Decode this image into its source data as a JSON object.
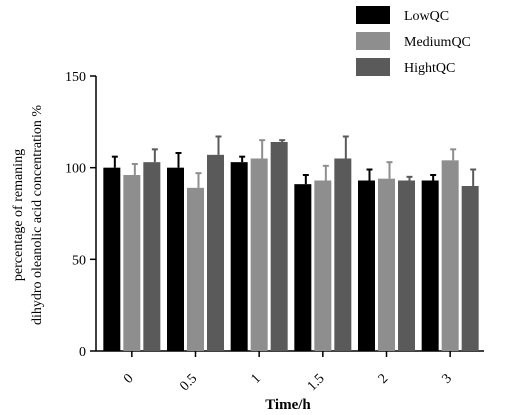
{
  "chart_data": {
    "type": "bar",
    "xlabel": "Time/h",
    "ylabel_lines": [
      "percentage of remaning",
      "dihydro oleanolic acid concentration %"
    ],
    "ylim": [
      0,
      150
    ],
    "yticks": [
      0,
      50,
      100,
      150
    ],
    "categories": [
      "0",
      "0.5",
      "1",
      "1.5",
      "2",
      "3"
    ],
    "series": [
      {
        "name": "LowQC",
        "color": "#000000",
        "values": [
          100,
          100,
          103,
          91,
          93,
          93
        ],
        "errors": [
          6,
          8,
          3,
          5,
          6,
          3
        ]
      },
      {
        "name": "MediumQC",
        "color": "#8e8e8e",
        "values": [
          96,
          89,
          105,
          93,
          94,
          104
        ],
        "errors": [
          6,
          8,
          10,
          8,
          9,
          6
        ]
      },
      {
        "name": "HightQC",
        "color": "#5a5a5a",
        "values": [
          103,
          107,
          114,
          105,
          93,
          90
        ],
        "errors": [
          7,
          10,
          1,
          12,
          2,
          9
        ]
      }
    ],
    "legend_position": "top-right",
    "grid": false
  }
}
